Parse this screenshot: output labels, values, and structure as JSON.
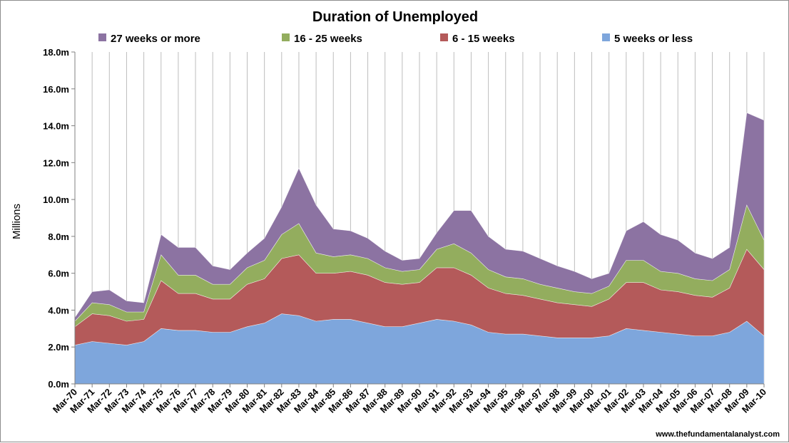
{
  "chart_data": {
    "type": "area",
    "stacked": true,
    "title": "Duration of Unemployed",
    "ylabel": "Millions",
    "xlabel": "",
    "credit": "www.thefundamentalanalyst.com",
    "ylim": [
      0,
      18
    ],
    "y_ticks": [
      "0.0m",
      "2.0m",
      "4.0m",
      "6.0m",
      "8.0m",
      "10.0m",
      "12.0m",
      "14.0m",
      "16.0m",
      "18.0m"
    ],
    "y_tick_values": [
      0,
      2,
      4,
      6,
      8,
      10,
      12,
      14,
      16,
      18
    ],
    "grid": "vertical gridlines",
    "legend_position": "top",
    "x": [
      "Mar-70",
      "Mar-71",
      "Mar-72",
      "Mar-73",
      "Mar-74",
      "Mar-75",
      "Mar-76",
      "Mar-77",
      "Mar-78",
      "Mar-79",
      "Mar-80",
      "Mar-81",
      "Mar-82",
      "Mar-83",
      "Mar-84",
      "Mar-85",
      "Mar-86",
      "Mar-87",
      "Mar-88",
      "Mar-89",
      "Mar-90",
      "Mar-91",
      "Mar-92",
      "Mar-93",
      "Mar-94",
      "Mar-95",
      "Mar-96",
      "Mar-97",
      "Mar-98",
      "Mar-99",
      "Mar-00",
      "Mar-01",
      "Mar-02",
      "Mar-03",
      "Mar-04",
      "Mar-05",
      "Mar-06",
      "Mar-07",
      "Mar-08",
      "Mar-09",
      "Mar-10"
    ],
    "series": [
      {
        "name": "5 weeks or less",
        "color": "#7ea6dc",
        "values": [
          2.1,
          2.3,
          2.2,
          2.1,
          2.3,
          3.0,
          2.9,
          2.9,
          2.8,
          2.8,
          3.1,
          3.3,
          3.8,
          3.7,
          3.4,
          3.5,
          3.5,
          3.3,
          3.1,
          3.1,
          3.3,
          3.5,
          3.4,
          3.2,
          2.8,
          2.7,
          2.7,
          2.6,
          2.5,
          2.5,
          2.5,
          2.6,
          3.0,
          2.9,
          2.8,
          2.7,
          2.6,
          2.6,
          2.8,
          3.4,
          2.6
        ]
      },
      {
        "name": "6 - 15 weeks",
        "color": "#b45a5a",
        "values": [
          1.0,
          1.5,
          1.5,
          1.3,
          1.2,
          2.6,
          2.0,
          2.0,
          1.8,
          1.8,
          2.3,
          2.4,
          3.0,
          3.3,
          2.6,
          2.5,
          2.6,
          2.6,
          2.4,
          2.3,
          2.2,
          2.8,
          2.9,
          2.7,
          2.4,
          2.2,
          2.1,
          2.0,
          1.9,
          1.8,
          1.7,
          2.0,
          2.5,
          2.6,
          2.3,
          2.3,
          2.2,
          2.1,
          2.4,
          3.9,
          3.6
        ]
      },
      {
        "name": "16 - 25 weeks",
        "color": "#93ad5e",
        "values": [
          0.3,
          0.6,
          0.6,
          0.5,
          0.4,
          1.4,
          1.0,
          1.0,
          0.8,
          0.8,
          0.9,
          1.0,
          1.3,
          1.7,
          1.1,
          0.9,
          0.9,
          0.9,
          0.8,
          0.7,
          0.7,
          1.0,
          1.3,
          1.2,
          1.0,
          0.9,
          0.9,
          0.8,
          0.8,
          0.7,
          0.7,
          0.7,
          1.2,
          1.2,
          1.0,
          1.0,
          0.9,
          0.9,
          1.0,
          2.4,
          1.6
        ]
      },
      {
        "name": "27 weeks or more",
        "color": "#8c73a2",
        "values": [
          0.2,
          0.6,
          0.8,
          0.6,
          0.5,
          1.1,
          1.5,
          1.5,
          1.0,
          0.8,
          0.8,
          1.2,
          1.5,
          3.0,
          2.6,
          1.5,
          1.3,
          1.1,
          0.9,
          0.6,
          0.6,
          0.9,
          1.8,
          2.3,
          1.8,
          1.5,
          1.5,
          1.4,
          1.2,
          1.1,
          0.8,
          0.7,
          1.6,
          2.1,
          2.0,
          1.8,
          1.4,
          1.2,
          1.2,
          5.0,
          6.5
        ]
      }
    ]
  }
}
